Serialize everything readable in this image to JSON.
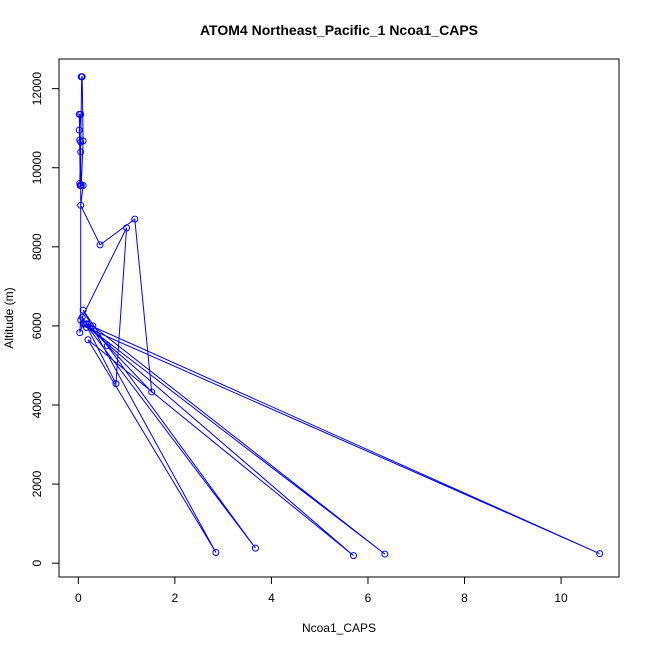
{
  "chart_data": {
    "type": "line",
    "title": "ATOM4 Northeast_Pacific_1 Ncoa1_CAPS",
    "xlabel": "Ncoa1_CAPS",
    "ylabel": "Altitude (m)",
    "xlim": [
      -0.4,
      11.2
    ],
    "ylim": [
      -350,
      12750
    ],
    "xticks": [
      0,
      2,
      4,
      6,
      8,
      10
    ],
    "yticks": [
      0,
      2000,
      4000,
      6000,
      8000,
      10000,
      12000
    ],
    "grid": false,
    "colors": {
      "series": "#0000ff",
      "axis": "#000000"
    },
    "series": [
      {
        "points": [
          [
            0.06,
            12300
          ],
          [
            0.08,
            12300
          ],
          [
            0.1,
            10680
          ],
          [
            0.06,
            9550
          ],
          [
            0.1,
            9550
          ],
          [
            0.05,
            9050
          ],
          [
            0.45,
            8050
          ],
          [
            1.17,
            8700
          ],
          [
            1.52,
            4330
          ],
          [
            0.18,
            6050
          ],
          [
            10.8,
            240
          ],
          [
            0.17,
            5960
          ],
          [
            0.3,
            6000
          ],
          [
            6.35,
            230
          ],
          [
            0.12,
            6050
          ],
          [
            5.7,
            190
          ],
          [
            0.2,
            5650
          ],
          [
            2.85,
            270
          ],
          [
            0.1,
            6400
          ],
          [
            0.6,
            5500
          ],
          [
            3.67,
            380
          ],
          [
            0.15,
            6050
          ],
          [
            0.78,
            4540
          ],
          [
            1.0,
            8480
          ],
          [
            0.08,
            6220
          ],
          [
            0.1,
            6050
          ],
          [
            0.03,
            5830
          ],
          [
            0.05,
            6150
          ],
          [
            0.05,
            10400
          ],
          [
            0.03,
            10700
          ],
          [
            0.02,
            10950
          ],
          [
            0.05,
            11350
          ],
          [
            0.02,
            11350
          ],
          [
            0.04,
            9550
          ],
          [
            0.03,
            9600
          ],
          [
            0.05,
            10650
          ],
          [
            0.07,
            12300
          ]
        ]
      }
    ]
  }
}
